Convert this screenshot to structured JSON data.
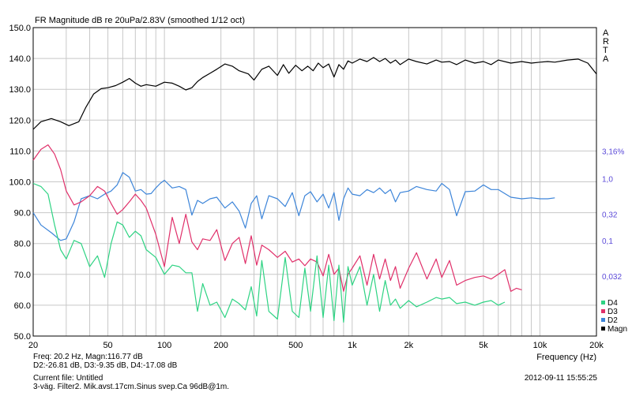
{
  "chart_data": {
    "type": "line",
    "title": "FR Magnitude dB re 20uPa/2.83V (smoothed 1/12 oct)",
    "xlabel": "Frequency (Hz)",
    "ylabel": "",
    "x_scale": "log",
    "xlim": [
      20,
      20000
    ],
    "ylim": [
      50,
      150
    ],
    "grid": true,
    "x_ticks": [
      20,
      50,
      100,
      200,
      500,
      1000,
      2000,
      5000,
      10000,
      20000
    ],
    "x_tick_labels": [
      "20",
      "50",
      "100",
      "200",
      "500",
      "1k",
      "2k",
      "5k",
      "10k",
      "20k"
    ],
    "y_ticks": [
      50,
      60,
      70,
      80,
      90,
      100,
      110,
      120,
      130,
      140,
      150
    ],
    "y_tick_labels": [
      "50.0",
      "60.0",
      "70.0",
      "80.0",
      "90.0",
      "100.0",
      "110.0",
      "120.0",
      "130.0",
      "140.0",
      "150.0"
    ],
    "right_axis_labels": [
      {
        "text": "3,16%",
        "y": 110
      },
      {
        "text": "1,0",
        "y": 101
      },
      {
        "text": "0,32",
        "y": 89.5
      },
      {
        "text": "0,1",
        "y": 81
      },
      {
        "text": "0,032",
        "y": 69.5
      }
    ],
    "watermark": [
      "A",
      "R",
      "T",
      "A"
    ],
    "legend": "bottom-right",
    "series": [
      {
        "name": "Magn",
        "color": "#000000",
        "x": [
          20,
          22,
          25,
          28,
          31,
          35,
          38,
          42,
          46,
          50,
          55,
          60,
          65,
          70,
          75,
          80,
          90,
          100,
          110,
          120,
          130,
          140,
          150,
          160,
          175,
          190,
          210,
          230,
          250,
          280,
          300,
          330,
          360,
          400,
          430,
          460,
          500,
          540,
          580,
          620,
          660,
          700,
          750,
          800,
          850,
          900,
          950,
          1000,
          1100,
          1200,
          1300,
          1400,
          1500,
          1600,
          1700,
          1800,
          2000,
          2200,
          2500,
          2800,
          3000,
          3300,
          3600,
          4000,
          4500,
          5000,
          5500,
          6000,
          7000,
          8000,
          9000,
          10000,
          11000,
          12000,
          14000,
          16000,
          18000,
          20000
        ],
        "y": [
          117,
          119.5,
          120.5,
          119.5,
          118.2,
          119.5,
          124,
          128.5,
          130.2,
          130.5,
          131.2,
          132.3,
          133.5,
          132.0,
          131.0,
          131.5,
          131.0,
          132.3,
          132.0,
          131.0,
          129.8,
          130.5,
          132.5,
          133.8,
          135.2,
          136.5,
          138.2,
          137.5,
          136.0,
          135.0,
          133.0,
          136.5,
          137.5,
          134.5,
          138.0,
          135.2,
          137.8,
          136.0,
          137.5,
          136.0,
          138.5,
          137.0,
          138.2,
          134.0,
          138.0,
          136.5,
          139.2,
          138.5,
          139.8,
          139.0,
          140.3,
          139.0,
          140.0,
          138.5,
          139.5,
          138.0,
          139.8,
          139.0,
          138.2,
          139.5,
          138.8,
          139.0,
          138.0,
          139.5,
          138.5,
          139.0,
          138.0,
          139.5,
          138.5,
          139.0,
          138.5,
          138.8,
          139.0,
          138.8,
          139.5,
          139.8,
          138.5,
          135.0
        ]
      },
      {
        "name": "D2",
        "color": "#3d85d9",
        "x": [
          20,
          22,
          25,
          28,
          30,
          33,
          36,
          40,
          44,
          48,
          52,
          56,
          60,
          65,
          70,
          75,
          80,
          85,
          90,
          95,
          100,
          110,
          120,
          130,
          140,
          150,
          160,
          175,
          190,
          210,
          230,
          250,
          270,
          290,
          310,
          330,
          360,
          400,
          440,
          480,
          520,
          560,
          600,
          650,
          700,
          750,
          800,
          850,
          900,
          950,
          1000,
          1100,
          1200,
          1300,
          1400,
          1500,
          1600,
          1700,
          1800,
          2000,
          2200,
          2500,
          2800,
          3000,
          3300,
          3600,
          4000,
          4500,
          5000,
          5500,
          6000,
          7000,
          8000,
          9000,
          10000,
          11000,
          12000
        ],
        "y": [
          90,
          86,
          83.5,
          81,
          81.5,
          87,
          94.5,
          95.5,
          94.5,
          96,
          97,
          99,
          103,
          101.5,
          97,
          97.5,
          96,
          96.2,
          98,
          99.5,
          100.5,
          98,
          98.5,
          97.5,
          89.2,
          94,
          93,
          94.5,
          95,
          91.5,
          93.5,
          90.5,
          85,
          93,
          95.5,
          88,
          95.5,
          94.5,
          92,
          96.5,
          89,
          95.5,
          96.8,
          93.5,
          96,
          91.5,
          96.5,
          87.5,
          94.5,
          98,
          96,
          95.5,
          97.5,
          96.5,
          98,
          96.2,
          97.5,
          93.5,
          96.5,
          97,
          98.5,
          97.5,
          97,
          99.5,
          97.5,
          89,
          96.8,
          97,
          99,
          97.5,
          97.5,
          95,
          94.5,
          94.8,
          94.5,
          94.5,
          94.8
        ]
      },
      {
        "name": "D3",
        "color": "#e0306a",
        "x": [
          20,
          22,
          24,
          26,
          28,
          30,
          33,
          36,
          40,
          44,
          48,
          52,
          56,
          60,
          65,
          70,
          75,
          80,
          90,
          100,
          110,
          120,
          130,
          140,
          150,
          160,
          175,
          190,
          210,
          230,
          250,
          270,
          290,
          310,
          330,
          360,
          400,
          440,
          480,
          520,
          560,
          600,
          650,
          700,
          750,
          800,
          850,
          900,
          950,
          1000,
          1100,
          1200,
          1300,
          1400,
          1500,
          1600,
          1700,
          1800,
          2000,
          2200,
          2500,
          2800,
          3000,
          3300,
          3600,
          4000,
          4500,
          5000,
          5500,
          6000,
          6500,
          7000,
          7500,
          8000
        ],
        "y": [
          107,
          110.5,
          112,
          109,
          104,
          97,
          92.5,
          93.5,
          95.5,
          98.5,
          97,
          93,
          89.5,
          91,
          93.5,
          96,
          94,
          91.5,
          83,
          72.5,
          88.5,
          80,
          89.5,
          80.5,
          78,
          81.5,
          81,
          84.5,
          74.5,
          80,
          82,
          73.5,
          82.5,
          73,
          79.5,
          78,
          75.5,
          77.5,
          74,
          75,
          72.8,
          75,
          74,
          69.5,
          76.5,
          70,
          72,
          64.5,
          70,
          72,
          76,
          66.5,
          76.5,
          68.5,
          75,
          68,
          72.5,
          65.5,
          72,
          77,
          68.5,
          75,
          69,
          74.5,
          66.5,
          68,
          69,
          69.5,
          68.5,
          70,
          71.5,
          64.5,
          65.5,
          65
        ]
      },
      {
        "name": "D4",
        "color": "#2ed383",
        "x": [
          20,
          22,
          24,
          26,
          28,
          30,
          33,
          36,
          40,
          44,
          48,
          52,
          56,
          60,
          65,
          70,
          75,
          80,
          90,
          100,
          110,
          120,
          130,
          140,
          150,
          160,
          175,
          190,
          210,
          230,
          250,
          270,
          290,
          310,
          330,
          360,
          400,
          440,
          480,
          520,
          560,
          600,
          650,
          700,
          750,
          800,
          850,
          900,
          950,
          1000,
          1100,
          1200,
          1300,
          1400,
          1500,
          1600,
          1700,
          1800,
          2000,
          2200,
          2500,
          2800,
          3000,
          3300,
          3600,
          4000,
          4500,
          5000,
          5500,
          6000,
          6500
        ],
        "y": [
          99.5,
          98.5,
          96,
          86,
          78,
          75,
          81,
          80,
          72.5,
          76,
          69,
          80,
          87,
          86,
          82,
          84,
          82.5,
          78,
          75.5,
          70,
          73,
          72.5,
          70.5,
          70.5,
          58,
          67,
          60,
          61,
          56,
          62,
          60.5,
          58.5,
          66,
          56.5,
          74.5,
          58,
          55.5,
          75.5,
          58,
          56,
          72,
          58,
          76,
          56,
          73,
          55,
          73,
          54.5,
          72.5,
          66.5,
          72.5,
          60,
          70,
          58,
          68,
          60,
          62,
          59,
          61.5,
          59.5,
          61,
          62.5,
          62,
          62.5,
          60.5,
          61,
          60,
          61,
          61.5,
          60,
          61
        ]
      }
    ]
  },
  "info": {
    "line1": "Freq: 20.2 Hz, Magn:116.77 dB",
    "line2": "D2:-26.81 dB, D3:-9.35 dB, D4:-17.08 dB",
    "line3": "Current file: Untitled",
    "line4": "3-väg. Filter2. Mik.avst.17cm.Sinus svep.Ca 96dB@1m.",
    "timestamp": "2012-09-11   15:55:25"
  }
}
